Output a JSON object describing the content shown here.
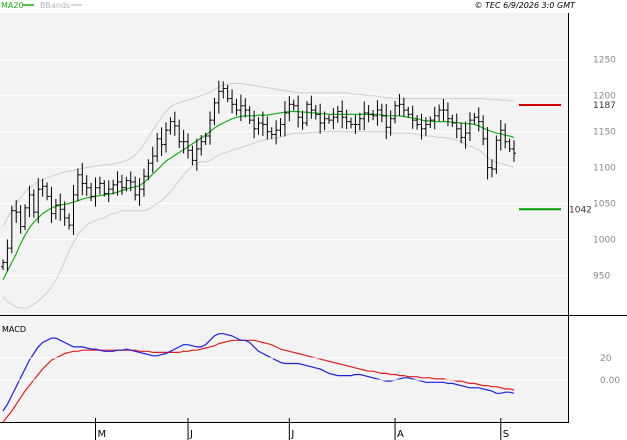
{
  "header": {
    "legend_ma": "MA20",
    "legend_bb": "BBands",
    "copyright": "© TEC 6/9/2026 3:0 GMT"
  },
  "colors": {
    "background_plot": "#f3f3f3",
    "price_bars": "#000000",
    "ma20": "#19b019",
    "bbands": "#cfcfcf",
    "macd_line": "#1f1fe0",
    "signal_line": "#e01f1f",
    "resistance": "#cc0000",
    "support": "#009900"
  },
  "chart_data": [
    {
      "type": "ohlc",
      "title": "",
      "y_axis": {
        "range": [
          895,
          1315
        ],
        "ticks": [
          950,
          1000,
          1050,
          1100,
          1150,
          1200,
          1250
        ]
      },
      "x_axis": {
        "month_labels": [
          "M",
          "J",
          "J",
          "A",
          "S"
        ]
      },
      "closes": [
        968,
        988,
        1040,
        1038,
        1018,
        1044,
        1062,
        1038,
        1070,
        1074,
        1060,
        1036,
        1048,
        1042,
        1030,
        1020,
        1062,
        1090,
        1078,
        1072,
        1060,
        1072,
        1078,
        1064,
        1070,
        1076,
        1080,
        1072,
        1082,
        1080,
        1062,
        1070,
        1088,
        1106,
        1116,
        1140,
        1132,
        1152,
        1164,
        1158,
        1136,
        1136,
        1124,
        1110,
        1126,
        1136,
        1144,
        1166,
        1190,
        1206,
        1210,
        1196,
        1188,
        1180,
        1186,
        1180,
        1166,
        1154,
        1162,
        1160,
        1150,
        1146,
        1152,
        1160,
        1176,
        1188,
        1186,
        1170,
        1162,
        1188,
        1180,
        1174,
        1162,
        1168,
        1166,
        1170,
        1178,
        1170,
        1164,
        1160,
        1160,
        1168,
        1176,
        1174,
        1172,
        1180,
        1172,
        1156,
        1168,
        1186,
        1188,
        1180,
        1174,
        1166,
        1160,
        1154,
        1160,
        1166,
        1172,
        1180,
        1180,
        1168,
        1162,
        1154,
        1142,
        1148,
        1166,
        1170,
        1164,
        1140,
        1100,
        1098,
        1138,
        1152,
        1136,
        1126,
        1120
      ],
      "ma20": [
        944,
        956,
        968,
        980,
        994,
        1006,
        1016,
        1024,
        1030,
        1036,
        1040,
        1044,
        1046,
        1048,
        1049,
        1050,
        1052,
        1054,
        1056,
        1058,
        1059,
        1060,
        1061,
        1062,
        1063,
        1064,
        1066,
        1068,
        1070,
        1072,
        1073,
        1075,
        1079,
        1085,
        1091,
        1097,
        1103,
        1109,
        1113,
        1117,
        1121,
        1125,
        1129,
        1133,
        1137,
        1141,
        1145,
        1150,
        1155,
        1159,
        1162,
        1165,
        1168,
        1170,
        1171,
        1172,
        1172,
        1172,
        1173,
        1173,
        1173,
        1174,
        1175,
        1176,
        1177,
        1178,
        1178,
        1178,
        1177,
        1177,
        1176,
        1176,
        1175,
        1175,
        1174,
        1174,
        1174,
        1174,
        1174,
        1174,
        1174,
        1174,
        1174,
        1174,
        1174,
        1174,
        1173,
        1172,
        1172,
        1172,
        1172,
        1171,
        1170,
        1169,
        1168,
        1166,
        1165,
        1165,
        1164,
        1164,
        1164,
        1164,
        1163,
        1163,
        1162,
        1161,
        1161,
        1160,
        1158,
        1155,
        1152,
        1150,
        1148,
        1147,
        1145,
        1144,
        1142
      ],
      "bb_upper": [
        1018,
        1030,
        1040,
        1050,
        1058,
        1066,
        1072,
        1076,
        1080,
        1083,
        1086,
        1088,
        1090,
        1092,
        1094,
        1095,
        1096,
        1098,
        1099,
        1100,
        1101,
        1102,
        1103,
        1104,
        1104,
        1105,
        1106,
        1108,
        1110,
        1113,
        1118,
        1124,
        1132,
        1142,
        1152,
        1162,
        1170,
        1178,
        1184,
        1188,
        1190,
        1192,
        1194,
        1196,
        1198,
        1200,
        1202,
        1205,
        1208,
        1212,
        1215,
        1216,
        1217,
        1217,
        1217,
        1216,
        1215,
        1214,
        1213,
        1212,
        1211,
        1210,
        1209,
        1208,
        1207,
        1206,
        1205,
        1204,
        1204,
        1204,
        1204,
        1204,
        1204,
        1204,
        1204,
        1204,
        1204,
        1204,
        1204,
        1203,
        1202,
        1202,
        1201,
        1200,
        1200,
        1199,
        1198,
        1197,
        1197,
        1196,
        1196,
        1196,
        1196,
        1196,
        1196,
        1196,
        1196,
        1196,
        1196,
        1196,
        1196,
        1196,
        1196,
        1196,
        1196,
        1196,
        1196,
        1196,
        1196,
        1196,
        1195,
        1195,
        1195,
        1194,
        1194,
        1193,
        1193
      ],
      "bb_lower": [
        920,
        914,
        910,
        906,
        905,
        904,
        906,
        910,
        914,
        920,
        926,
        934,
        944,
        956,
        970,
        984,
        996,
        1006,
        1014,
        1020,
        1024,
        1026,
        1028,
        1030,
        1034,
        1036,
        1038,
        1040,
        1040,
        1040,
        1040,
        1040,
        1040,
        1042,
        1046,
        1050,
        1054,
        1060,
        1066,
        1074,
        1082,
        1090,
        1096,
        1102,
        1106,
        1108,
        1108,
        1110,
        1114,
        1118,
        1120,
        1122,
        1124,
        1126,
        1128,
        1130,
        1132,
        1134,
        1136,
        1138,
        1139,
        1140,
        1141,
        1142,
        1144,
        1146,
        1148,
        1148,
        1148,
        1148,
        1149,
        1149,
        1150,
        1150,
        1150,
        1150,
        1150,
        1150,
        1150,
        1150,
        1150,
        1150,
        1150,
        1150,
        1150,
        1150,
        1150,
        1150,
        1149,
        1148,
        1148,
        1148,
        1148,
        1147,
        1146,
        1145,
        1144,
        1144,
        1143,
        1142,
        1142,
        1141,
        1140,
        1138,
        1136,
        1132,
        1130,
        1127,
        1125,
        1120,
        1113,
        1110,
        1108,
        1106,
        1104,
        1102,
        1100
      ],
      "resistance": {
        "value": 1187,
        "label": "1187"
      },
      "support": {
        "value": 1042,
        "label": "1042"
      }
    },
    {
      "type": "line",
      "title": "MACD",
      "y_axis": {
        "range": [
          -38,
          58
        ],
        "ticks": [
          0,
          20
        ],
        "tick_labels": [
          "0.00",
          "20"
        ]
      },
      "series": [
        {
          "values": [
            -28,
            -22,
            -14,
            -6,
            2,
            10,
            18,
            24,
            30,
            34,
            36,
            38,
            38,
            36,
            34,
            32,
            30,
            30,
            30,
            29,
            28,
            28,
            27,
            26,
            26,
            26,
            27,
            27,
            28,
            27,
            26,
            25,
            24,
            23,
            22,
            22,
            23,
            24,
            26,
            28,
            30,
            32,
            32,
            31,
            30,
            30,
            32,
            36,
            40,
            42,
            42,
            41,
            40,
            38,
            36,
            36,
            34,
            30,
            26,
            24,
            22,
            20,
            18,
            16,
            15,
            15,
            15,
            15,
            14,
            13,
            12,
            11,
            10,
            8,
            6,
            5,
            4,
            4,
            4,
            4,
            5,
            5,
            4,
            3,
            2,
            1,
            0,
            -1,
            -1,
            0,
            1,
            2,
            2,
            1,
            0,
            -1,
            -2,
            -2,
            -2,
            -2,
            -2,
            -3,
            -3,
            -4,
            -5,
            -6,
            -7,
            -7,
            -7,
            -8,
            -9,
            -10,
            -12,
            -12,
            -11,
            -11,
            -12
          ]
        },
        {
          "values": [
            -38,
            -33,
            -28,
            -22,
            -16,
            -10,
            -5,
            0,
            5,
            10,
            14,
            18,
            20,
            22,
            24,
            25,
            26,
            26,
            27,
            27,
            27,
            27,
            27,
            27,
            27,
            27,
            27,
            27,
            27,
            27,
            27,
            26,
            26,
            26,
            25,
            25,
            25,
            25,
            25,
            25,
            25,
            26,
            26,
            27,
            27,
            28,
            29,
            30,
            31,
            33,
            34,
            35,
            36,
            36,
            36,
            36,
            36,
            36,
            35,
            34,
            33,
            32,
            30,
            28,
            27,
            26,
            25,
            24,
            23,
            22,
            21,
            20,
            19,
            18,
            17,
            16,
            15,
            14,
            13,
            12,
            11,
            10,
            9,
            8,
            8,
            7,
            6,
            6,
            5,
            5,
            4,
            4,
            3,
            3,
            3,
            2,
            2,
            2,
            1,
            1,
            1,
            0,
            0,
            -1,
            -1,
            -2,
            -3,
            -3,
            -4,
            -5,
            -5,
            -6,
            -6,
            -7,
            -8,
            -8,
            -9
          ]
        }
      ]
    }
  ]
}
